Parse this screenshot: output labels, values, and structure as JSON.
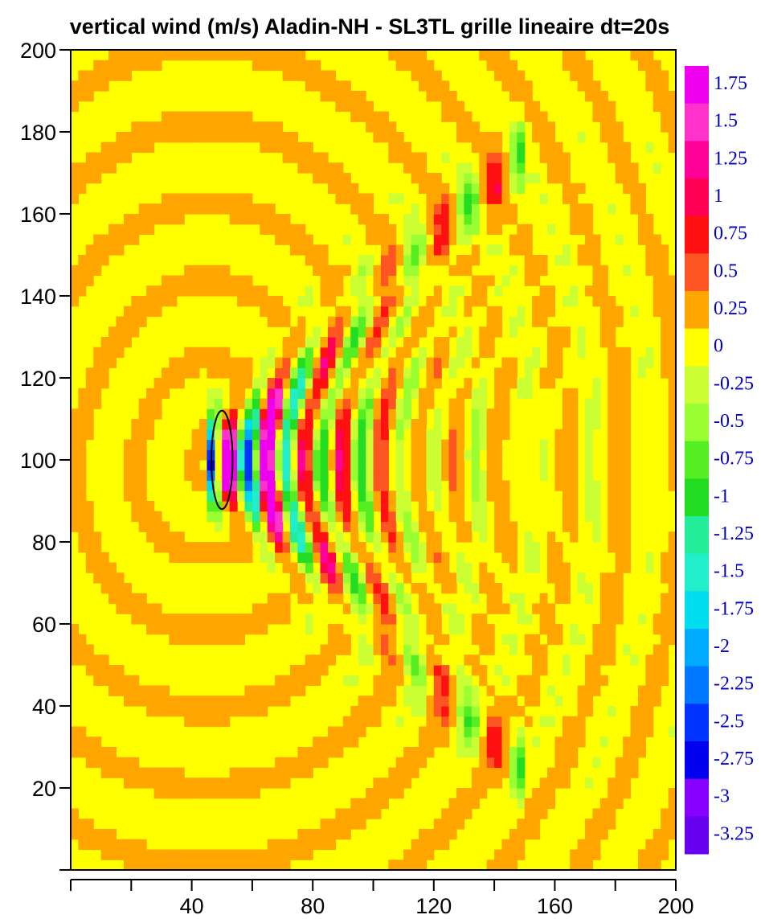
{
  "chart_data": {
    "type": "heatmap",
    "title": "vertical wind (m/s) Aladin-NH - SL3TL grille lineaire dt=20s",
    "xlabel": "",
    "ylabel": "",
    "xlim": [
      0,
      200
    ],
    "ylim": [
      0,
      200
    ],
    "x_ticks": [
      40,
      80,
      120,
      160,
      200
    ],
    "y_ticks": [
      20,
      40,
      60,
      80,
      100,
      120,
      140,
      160,
      180,
      200
    ],
    "x_minor_ticks": [
      20,
      60,
      100,
      140,
      180
    ],
    "mountain_contour": {
      "center": [
        50,
        100
      ],
      "half_width": 3.5,
      "half_height": 12
    },
    "colorbar": {
      "levels": [
        {
          "label": "1.75",
          "color": "#ee00ee"
        },
        {
          "label": "1.5",
          "color": "#ff33cc"
        },
        {
          "label": "1.25",
          "color": "#ff0099"
        },
        {
          "label": "1",
          "color": "#ff0055"
        },
        {
          "label": "0.75",
          "color": "#ff1111"
        },
        {
          "label": "0.5",
          "color": "#ff5522"
        },
        {
          "label": "0.25",
          "color": "#ffa500"
        },
        {
          "label": "0",
          "color": "#ffff00"
        },
        {
          "label": "-0.25",
          "color": "#ccff33"
        },
        {
          "label": "-0.5",
          "color": "#99ff33"
        },
        {
          "label": "-0.75",
          "color": "#55ee22"
        },
        {
          "label": "-1",
          "color": "#22dd22"
        },
        {
          "label": "-1.25",
          "color": "#22ee99"
        },
        {
          "label": "-1.5",
          "color": "#22eecc"
        },
        {
          "label": "-1.75",
          "color": "#00ddee"
        },
        {
          "label": "-2",
          "color": "#00aaff"
        },
        {
          "label": "-2.25",
          "color": "#0077ff"
        },
        {
          "label": "-2.5",
          "color": "#0033ff"
        },
        {
          "label": "-2.75",
          "color": "#0000ee"
        },
        {
          "label": "-3",
          "color": "#8800ff"
        },
        {
          "label": "-3.25",
          "color": "#6600ee"
        }
      ]
    },
    "field": {
      "description_free": true,
      "wave_center": [
        45,
        100
      ],
      "regions": {
        "background_orange": "#ffa500",
        "background_yellow": "#ffff00"
      }
    }
  }
}
